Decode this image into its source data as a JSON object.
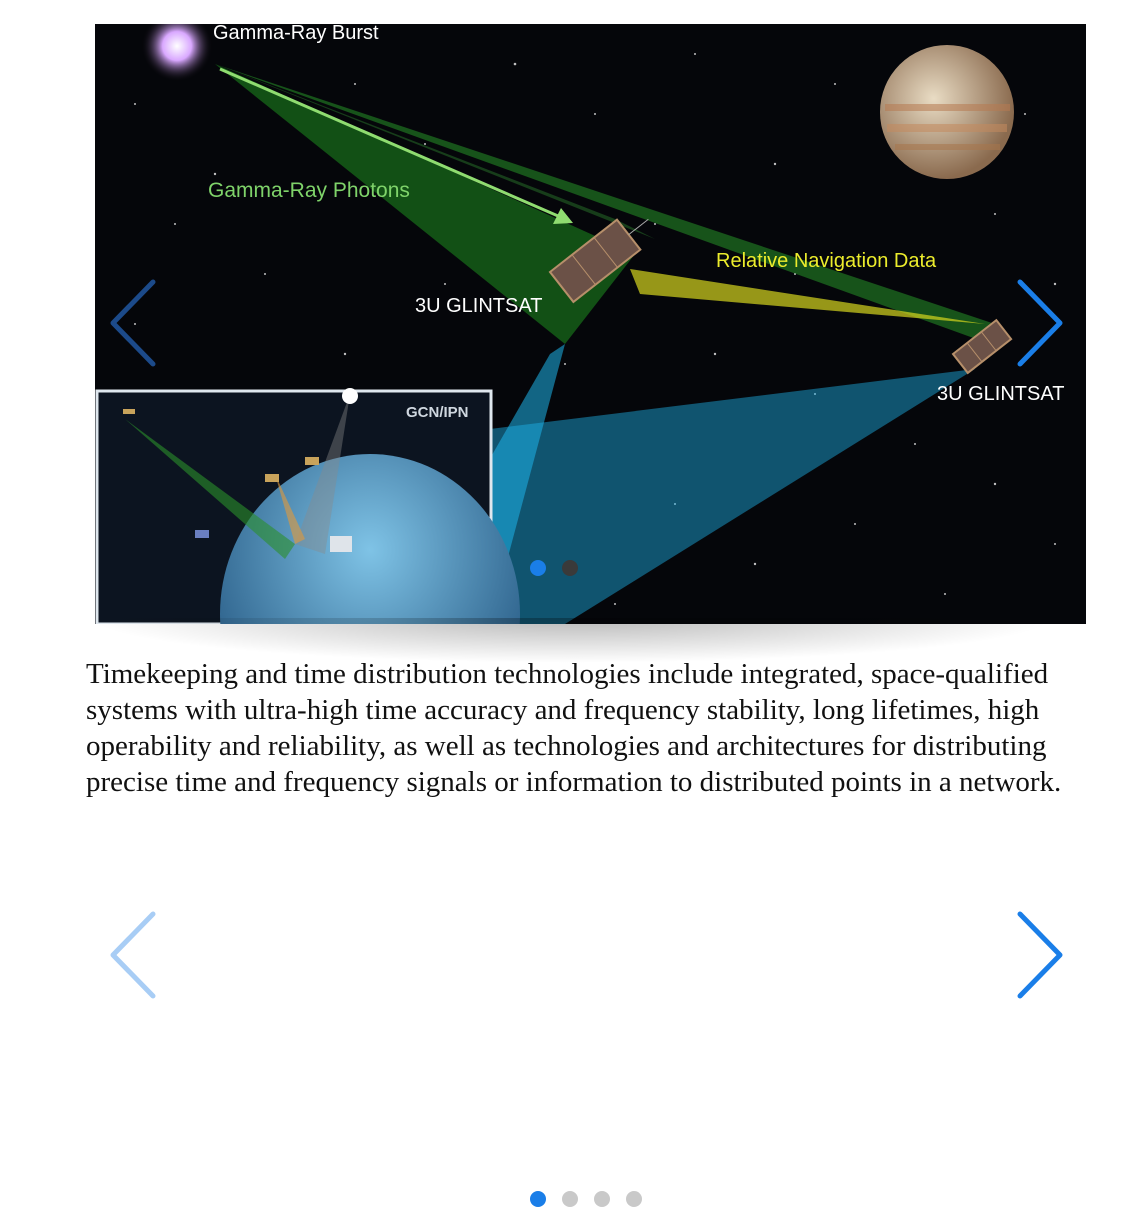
{
  "hero": {
    "labels": {
      "burst": "Gamma-Ray Burst",
      "photons": "Gamma-Ray Photons",
      "sat_left": "3U GLINTSAT",
      "sat_right": "3U GLINTSAT",
      "nav_data": "Relative Navigation Data",
      "inset_title": "GCN/IPN"
    }
  },
  "caption": "Timekeeping and time distribution technologies include integrated, space-qualified systems with ultra-high time accuracy and frequency stability, long lifetimes, high operability and reliability, as well as technologies and architectures for distributing precise time and frequency signals or information to distributed points in a network.",
  "carousel": {
    "slide_count": 4,
    "active_index": 0
  },
  "icons": {
    "prev": "chevron-left-icon",
    "next": "chevron-right-icon"
  },
  "colors": {
    "accent": "#1a7ee8",
    "accent_faded": "#a8cdf5",
    "dot_inactive": "#c9c9c9",
    "photon_label": "#7fd36a",
    "nav_label": "#ecec2c"
  }
}
